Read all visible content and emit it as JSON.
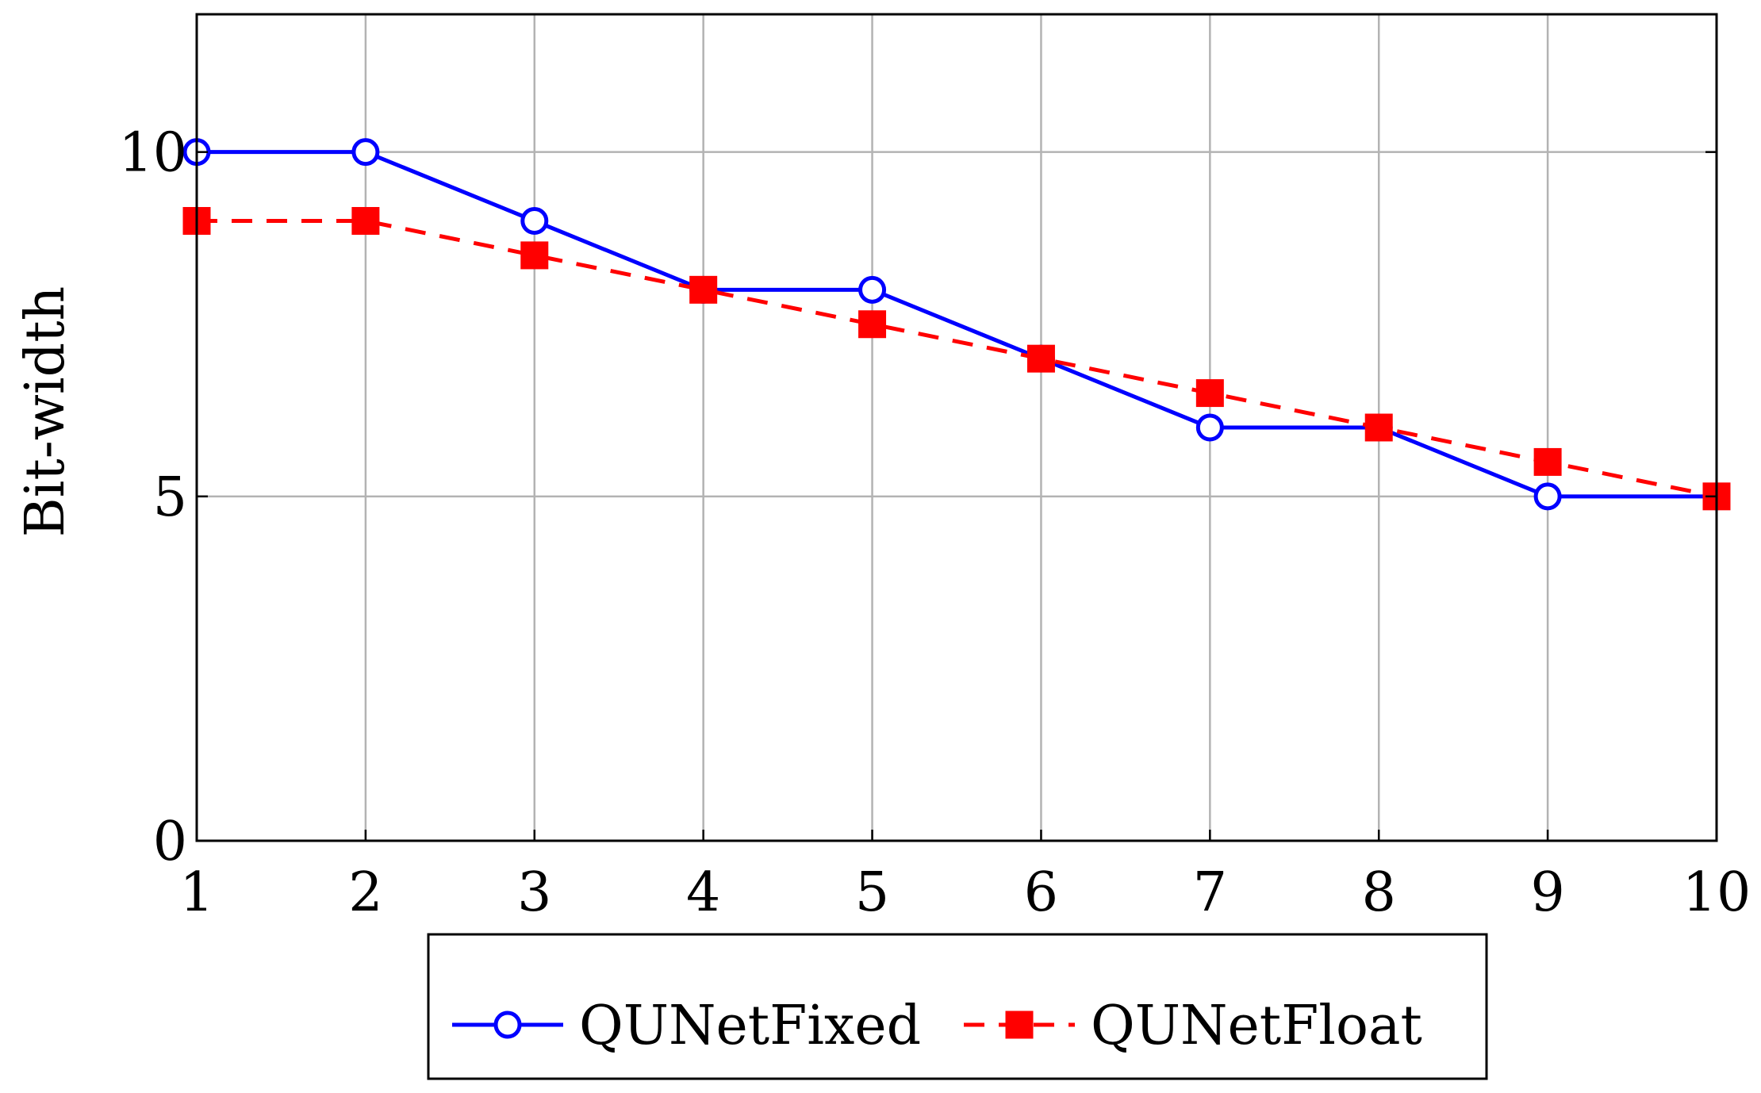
{
  "chart_data": {
    "type": "line",
    "title": "",
    "xlabel": "",
    "ylabel": "Bit-width",
    "x": [
      1,
      2,
      3,
      4,
      5,
      6,
      7,
      8,
      9,
      10
    ],
    "xlim": [
      1,
      10
    ],
    "ylim": [
      0,
      12
    ],
    "xticks": [
      "1",
      "2",
      "3",
      "4",
      "5",
      "6",
      "7",
      "8",
      "9",
      "10"
    ],
    "yticks": [
      "0",
      "5",
      "10"
    ],
    "grid": true,
    "legend_position": "bottom",
    "series": [
      {
        "name": "QUNetFixed",
        "values": [
          10,
          10,
          9,
          8,
          8,
          7,
          6,
          6,
          5,
          5
        ],
        "color": "#0000ff",
        "marker": "circle-open",
        "line": "solid"
      },
      {
        "name": "QUNetFloat",
        "values": [
          9,
          9,
          8.5,
          8,
          7.5,
          7,
          6.5,
          6,
          5.5,
          5
        ],
        "color": "#ff0000",
        "marker": "square-filled",
        "line": "dashed"
      }
    ]
  }
}
